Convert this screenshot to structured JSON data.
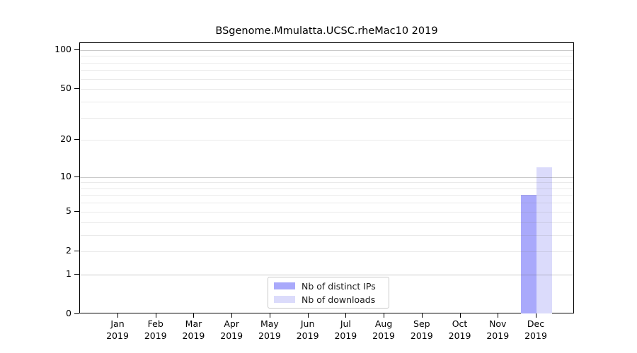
{
  "chart_data": {
    "type": "bar",
    "title": "BSgenome.Mmulatta.UCSC.rheMac10 2019",
    "xlabel": "",
    "ylabel": "",
    "categories": [
      "Jan",
      "Feb",
      "Mar",
      "Apr",
      "May",
      "Jun",
      "Jul",
      "Aug",
      "Sep",
      "Oct",
      "Nov",
      "Dec"
    ],
    "category_year": "2019",
    "series": [
      {
        "name": "Nb of distinct IPs",
        "color": "#a9a9fb",
        "values": [
          0,
          0,
          0,
          0,
          0,
          0,
          0,
          0,
          0,
          0,
          0,
          7
        ]
      },
      {
        "name": "Nb of downloads",
        "color": "#dbdbfb",
        "values": [
          0,
          0,
          0,
          0,
          0,
          0,
          0,
          0,
          0,
          0,
          0,
          12
        ]
      }
    ],
    "y_scale": "log1p",
    "y_ticks": [
      0,
      1,
      2,
      5,
      10,
      20,
      50,
      100
    ],
    "ylim": [
      0,
      113
    ],
    "grid": {
      "on": true,
      "minor_values": [
        2,
        3,
        4,
        5,
        6,
        7,
        8,
        9,
        20,
        30,
        40,
        50,
        60,
        70,
        80,
        90
      ],
      "major_values": [
        1,
        10,
        100
      ],
      "minor_color": "rgba(127,127,127,0.16)",
      "major_color": "rgba(90,90,90,0.32)"
    },
    "legend_position": "bottom-center"
  }
}
